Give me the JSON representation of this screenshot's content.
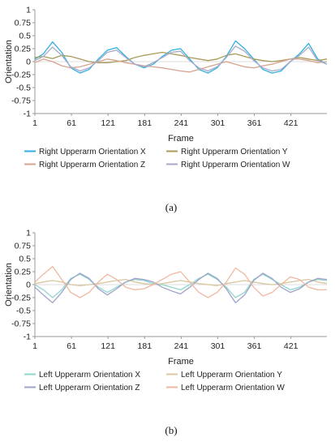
{
  "chart_data": [
    {
      "type": "line",
      "caption": "(a)",
      "xlabel": "Frame",
      "ylabel": "Orientation",
      "ylim": [
        -1,
        1
      ],
      "xlim": [
        1,
        480
      ],
      "y_ticks": [
        "1",
        "0.75",
        "0.5",
        "0.25",
        "0",
        "-0.25",
        "-0.5",
        "-0.75",
        "-1"
      ],
      "x_ticks": [
        "1",
        "61",
        "121",
        "181",
        "241",
        "301",
        "361",
        "421"
      ],
      "x_tick_values": [
        1,
        61,
        121,
        181,
        241,
        301,
        361,
        421
      ],
      "grid": false,
      "legend": "bottom",
      "series": [
        {
          "name": "Right Upperarm Orientation X",
          "color": "#2FB0E0",
          "x": [
            1,
            15,
            30,
            45,
            60,
            75,
            90,
            105,
            120,
            135,
            150,
            165,
            180,
            195,
            210,
            225,
            240,
            255,
            270,
            285,
            300,
            315,
            330,
            345,
            360,
            375,
            390,
            405,
            420,
            435,
            450,
            465,
            480
          ],
          "y": [
            0.05,
            0.15,
            0.38,
            0.18,
            -0.12,
            -0.22,
            -0.15,
            0.05,
            0.22,
            0.27,
            0.1,
            -0.05,
            -0.12,
            -0.05,
            0.1,
            0.22,
            0.25,
            0.05,
            -0.15,
            -0.22,
            -0.12,
            0.1,
            0.4,
            0.25,
            0.05,
            -0.15,
            -0.22,
            -0.18,
            0.0,
            0.15,
            0.35,
            0.05,
            -0.05
          ]
        },
        {
          "name": "Right Upperarm Orientation Y",
          "color": "#A89A5A",
          "x": [
            1,
            15,
            30,
            45,
            60,
            75,
            90,
            105,
            120,
            135,
            150,
            165,
            180,
            195,
            210,
            225,
            240,
            255,
            270,
            285,
            300,
            315,
            330,
            345,
            360,
            375,
            390,
            405,
            420,
            435,
            450,
            465,
            480
          ],
          "y": [
            0.08,
            0.1,
            0.06,
            0.12,
            0.1,
            0.05,
            0.0,
            -0.02,
            -0.02,
            0.0,
            0.02,
            0.08,
            0.12,
            0.15,
            0.18,
            0.15,
            0.12,
            0.08,
            0.05,
            0.02,
            0.05,
            0.12,
            0.15,
            0.1,
            0.05,
            0.02,
            0.0,
            0.02,
            0.05,
            0.08,
            0.05,
            0.02,
            0.05
          ]
        },
        {
          "name": "Right Upperarm Orientation Z",
          "color": "#D7A390",
          "x": [
            1,
            15,
            30,
            45,
            60,
            75,
            90,
            105,
            120,
            135,
            150,
            165,
            180,
            195,
            210,
            225,
            240,
            255,
            270,
            285,
            300,
            315,
            330,
            345,
            360,
            375,
            390,
            405,
            420,
            435,
            450,
            465,
            480
          ],
          "y": [
            -0.02,
            0.05,
            0.0,
            -0.08,
            -0.12,
            -0.1,
            -0.05,
            0.0,
            0.05,
            0.02,
            -0.02,
            -0.05,
            -0.08,
            -0.1,
            -0.12,
            -0.15,
            -0.18,
            -0.2,
            -0.15,
            -0.1,
            -0.05,
            0.0,
            -0.05,
            -0.1,
            -0.12,
            -0.08,
            -0.05,
            0.0,
            0.05,
            0.05,
            0.02,
            -0.02,
            0.0
          ]
        },
        {
          "name": "Right Upperarm Orientation W",
          "color": "#A8A9C8",
          "x": [
            1,
            15,
            30,
            45,
            60,
            75,
            90,
            105,
            120,
            135,
            150,
            165,
            180,
            195,
            210,
            225,
            240,
            255,
            270,
            285,
            300,
            315,
            330,
            345,
            360,
            375,
            390,
            405,
            420,
            435,
            450,
            465,
            480
          ],
          "y": [
            0.02,
            0.1,
            0.28,
            0.12,
            -0.1,
            -0.18,
            -0.12,
            0.02,
            0.18,
            0.22,
            0.08,
            -0.05,
            -0.1,
            -0.02,
            0.08,
            0.18,
            0.2,
            0.02,
            -0.12,
            -0.18,
            -0.1,
            0.08,
            0.3,
            0.2,
            0.02,
            -0.12,
            -0.18,
            -0.15,
            0.0,
            0.12,
            0.28,
            0.02,
            -0.05
          ]
        }
      ]
    },
    {
      "type": "line",
      "caption": "(b)",
      "xlabel": "Frame",
      "ylabel": "Orientation",
      "ylim": [
        -1,
        1
      ],
      "xlim": [
        1,
        480
      ],
      "y_ticks": [
        "1",
        "0.75",
        "0.5",
        "0.25",
        "0",
        "-0.25",
        "-0.5",
        "-0.75",
        "-1"
      ],
      "x_ticks": [
        "1",
        "61",
        "121",
        "181",
        "241",
        "301",
        "361",
        "421"
      ],
      "x_tick_values": [
        1,
        61,
        121,
        181,
        241,
        301,
        361,
        421
      ],
      "grid": false,
      "legend": "bottom",
      "series": [
        {
          "name": "Left Upperarm Orientation X",
          "color": "#8FD6CB",
          "x": [
            1,
            15,
            30,
            45,
            60,
            75,
            90,
            105,
            120,
            135,
            150,
            165,
            180,
            195,
            210,
            225,
            240,
            255,
            270,
            285,
            300,
            315,
            330,
            345,
            360,
            375,
            390,
            405,
            420,
            435,
            450,
            465,
            480
          ],
          "y": [
            0.0,
            -0.1,
            -0.25,
            -0.1,
            0.12,
            0.2,
            0.1,
            -0.05,
            -0.15,
            -0.05,
            0.05,
            0.1,
            0.08,
            0.02,
            0.0,
            -0.05,
            -0.1,
            0.0,
            0.12,
            0.2,
            0.1,
            -0.05,
            -0.25,
            -0.15,
            0.1,
            0.2,
            0.1,
            0.0,
            -0.1,
            -0.05,
            0.05,
            0.1,
            0.08
          ]
        },
        {
          "name": "Left Upperarm Orientation Y",
          "color": "#D9C7A0",
          "x": [
            1,
            15,
            30,
            45,
            60,
            75,
            90,
            105,
            120,
            135,
            150,
            165,
            180,
            195,
            210,
            225,
            240,
            255,
            270,
            285,
            300,
            315,
            330,
            345,
            360,
            375,
            390,
            405,
            420,
            435,
            450,
            465,
            480
          ],
          "y": [
            0.02,
            0.05,
            0.08,
            0.05,
            0.0,
            -0.02,
            0.0,
            0.02,
            0.05,
            0.08,
            0.1,
            0.05,
            0.02,
            0.0,
            0.02,
            0.05,
            0.08,
            0.05,
            0.02,
            0.0,
            -0.02,
            0.02,
            0.05,
            0.08,
            0.05,
            0.02,
            0.0,
            0.02,
            0.05,
            0.08,
            0.1,
            0.05,
            0.02
          ]
        },
        {
          "name": "Left Upperarm Orientation Z",
          "color": "#9DA3CC",
          "x": [
            1,
            15,
            30,
            45,
            60,
            75,
            90,
            105,
            120,
            135,
            150,
            165,
            180,
            195,
            210,
            225,
            240,
            255,
            270,
            285,
            300,
            315,
            330,
            345,
            360,
            375,
            390,
            405,
            420,
            435,
            450,
            465,
            480
          ],
          "y": [
            -0.05,
            -0.2,
            -0.35,
            -0.15,
            0.1,
            0.22,
            0.12,
            -0.08,
            -0.2,
            -0.08,
            0.05,
            0.12,
            0.1,
            0.05,
            -0.05,
            -0.12,
            -0.18,
            -0.05,
            0.1,
            0.22,
            0.12,
            -0.08,
            -0.35,
            -0.2,
            0.08,
            0.22,
            0.12,
            -0.05,
            -0.15,
            -0.08,
            0.05,
            0.12,
            0.1
          ]
        },
        {
          "name": "Left Upperarm Orientation W",
          "color": "#F0B8A0",
          "x": [
            1,
            15,
            30,
            45,
            60,
            75,
            90,
            105,
            120,
            135,
            150,
            165,
            180,
            195,
            210,
            225,
            240,
            255,
            270,
            285,
            300,
            315,
            330,
            345,
            360,
            375,
            390,
            405,
            420,
            435,
            450,
            465,
            480
          ],
          "y": [
            0.05,
            0.2,
            0.35,
            0.1,
            -0.15,
            -0.25,
            -0.15,
            0.05,
            0.2,
            0.1,
            -0.05,
            -0.1,
            -0.08,
            0.0,
            0.1,
            0.2,
            0.25,
            0.05,
            -0.15,
            -0.25,
            -0.15,
            0.05,
            0.32,
            0.2,
            -0.05,
            -0.22,
            -0.15,
            0.0,
            0.15,
            0.1,
            -0.05,
            -0.1,
            -0.1
          ]
        }
      ]
    }
  ]
}
